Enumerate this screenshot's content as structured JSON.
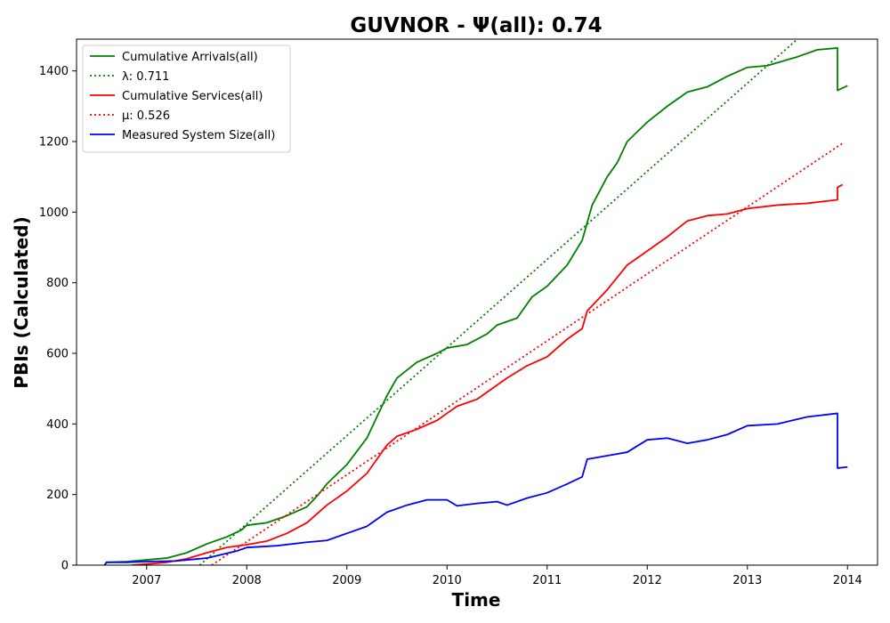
{
  "chart_data": {
    "type": "line",
    "title": "GUVNOR -  Ψ(all): 0.74",
    "xlabel": "Time",
    "ylabel": "PBIs (Calculated)",
    "xlim": [
      2006.3,
      2014.3
    ],
    "ylim": [
      0,
      1490
    ],
    "x_ticks": [
      2007,
      2008,
      2009,
      2010,
      2011,
      2012,
      2013,
      2014
    ],
    "y_ticks": [
      0,
      200,
      400,
      600,
      800,
      1000,
      1200,
      1400
    ],
    "grid": false,
    "legend_position": "upper-left",
    "series": [
      {
        "name": "Cumulative Arrivals(all)",
        "color": "#008000",
        "style": "solid",
        "points": [
          [
            2006.58,
            0
          ],
          [
            2006.6,
            8
          ],
          [
            2006.8,
            10
          ],
          [
            2007.0,
            15
          ],
          [
            2007.2,
            20
          ],
          [
            2007.4,
            35
          ],
          [
            2007.6,
            60
          ],
          [
            2007.8,
            80
          ],
          [
            2007.95,
            100
          ],
          [
            2008.0,
            113
          ],
          [
            2008.2,
            120
          ],
          [
            2008.4,
            140
          ],
          [
            2008.6,
            165
          ],
          [
            2008.7,
            195
          ],
          [
            2008.8,
            230
          ],
          [
            2009.0,
            285
          ],
          [
            2009.2,
            360
          ],
          [
            2009.3,
            420
          ],
          [
            2009.4,
            480
          ],
          [
            2009.5,
            530
          ],
          [
            2009.7,
            575
          ],
          [
            2009.9,
            600
          ],
          [
            2010.0,
            615
          ],
          [
            2010.2,
            625
          ],
          [
            2010.4,
            655
          ],
          [
            2010.5,
            680
          ],
          [
            2010.7,
            700
          ],
          [
            2010.85,
            760
          ],
          [
            2011.0,
            790
          ],
          [
            2011.2,
            850
          ],
          [
            2011.35,
            920
          ],
          [
            2011.45,
            1020
          ],
          [
            2011.6,
            1100
          ],
          [
            2011.7,
            1140
          ],
          [
            2011.8,
            1200
          ],
          [
            2012.0,
            1255
          ],
          [
            2012.2,
            1300
          ],
          [
            2012.4,
            1340
          ],
          [
            2012.6,
            1355
          ],
          [
            2012.8,
            1385
          ],
          [
            2013.0,
            1410
          ],
          [
            2013.2,
            1415
          ],
          [
            2013.5,
            1440
          ],
          [
            2013.7,
            1460
          ],
          [
            2013.9,
            1465
          ],
          [
            2013.9,
            1345
          ],
          [
            2014.0,
            1358
          ]
        ]
      },
      {
        "name": "λ: 0.711",
        "color": "#008000",
        "style": "dotted",
        "points": [
          [
            2007.53,
            0
          ],
          [
            2013.5,
            1490
          ]
        ]
      },
      {
        "name": "Cumulative Services(all)",
        "color": "#ff0000",
        "style": "solid",
        "points": [
          [
            2006.85,
            0
          ],
          [
            2007.0,
            3
          ],
          [
            2007.2,
            8
          ],
          [
            2007.4,
            18
          ],
          [
            2007.6,
            35
          ],
          [
            2007.8,
            50
          ],
          [
            2008.0,
            58
          ],
          [
            2008.2,
            68
          ],
          [
            2008.4,
            90
          ],
          [
            2008.6,
            120
          ],
          [
            2008.8,
            170
          ],
          [
            2009.0,
            210
          ],
          [
            2009.2,
            260
          ],
          [
            2009.4,
            340
          ],
          [
            2009.5,
            365
          ],
          [
            2009.7,
            385
          ],
          [
            2009.9,
            410
          ],
          [
            2010.1,
            450
          ],
          [
            2010.3,
            470
          ],
          [
            2010.4,
            490
          ],
          [
            2010.6,
            530
          ],
          [
            2010.8,
            565
          ],
          [
            2011.0,
            590
          ],
          [
            2011.2,
            640
          ],
          [
            2011.35,
            670
          ],
          [
            2011.4,
            720
          ],
          [
            2011.6,
            780
          ],
          [
            2011.8,
            850
          ],
          [
            2012.0,
            890
          ],
          [
            2012.2,
            930
          ],
          [
            2012.4,
            975
          ],
          [
            2012.6,
            990
          ],
          [
            2012.8,
            995
          ],
          [
            2013.0,
            1010
          ],
          [
            2013.3,
            1020
          ],
          [
            2013.6,
            1025
          ],
          [
            2013.9,
            1035
          ],
          [
            2013.9,
            1070
          ],
          [
            2013.95,
            1078
          ]
        ]
      },
      {
        "name": "μ: 0.526",
        "color": "#ff0000",
        "style": "dotted",
        "points": [
          [
            2007.65,
            0
          ],
          [
            2013.95,
            1195
          ]
        ]
      },
      {
        "name": "Measured System Size(all)",
        "color": "#0000ff",
        "style": "solid",
        "points": [
          [
            2006.58,
            0
          ],
          [
            2006.6,
            8
          ],
          [
            2006.8,
            8
          ],
          [
            2007.0,
            10
          ],
          [
            2007.3,
            12
          ],
          [
            2007.6,
            20
          ],
          [
            2007.9,
            40
          ],
          [
            2008.0,
            50
          ],
          [
            2008.3,
            55
          ],
          [
            2008.6,
            65
          ],
          [
            2008.8,
            70
          ],
          [
            2009.0,
            90
          ],
          [
            2009.2,
            110
          ],
          [
            2009.4,
            150
          ],
          [
            2009.6,
            170
          ],
          [
            2009.8,
            185
          ],
          [
            2010.0,
            185
          ],
          [
            2010.1,
            168
          ],
          [
            2010.3,
            175
          ],
          [
            2010.5,
            180
          ],
          [
            2010.6,
            170
          ],
          [
            2010.8,
            190
          ],
          [
            2011.0,
            205
          ],
          [
            2011.2,
            230
          ],
          [
            2011.35,
            250
          ],
          [
            2011.4,
            300
          ],
          [
            2011.6,
            310
          ],
          [
            2011.8,
            320
          ],
          [
            2012.0,
            355
          ],
          [
            2012.2,
            360
          ],
          [
            2012.4,
            345
          ],
          [
            2012.6,
            355
          ],
          [
            2012.8,
            370
          ],
          [
            2013.0,
            395
          ],
          [
            2013.3,
            400
          ],
          [
            2013.6,
            420
          ],
          [
            2013.9,
            430
          ],
          [
            2013.9,
            275
          ],
          [
            2014.0,
            278
          ]
        ]
      }
    ]
  }
}
